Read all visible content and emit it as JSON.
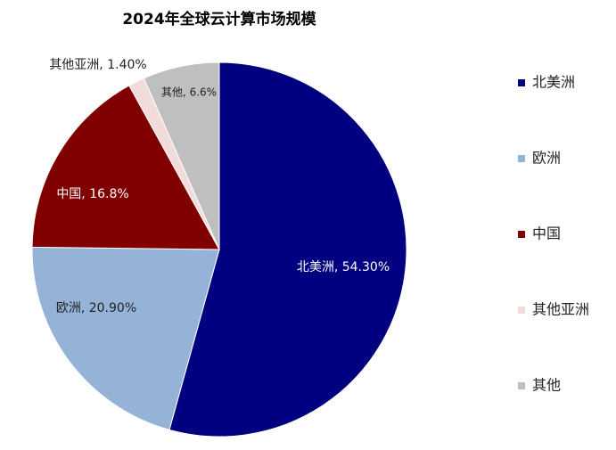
{
  "chart_data": {
    "type": "pie",
    "title": "2024年全球云计算市场规模",
    "categories": [
      "北美洲",
      "欧洲",
      "中国",
      "其他亚洲",
      "其他"
    ],
    "values": [
      54.3,
      20.9,
      16.8,
      1.4,
      6.6
    ],
    "value_labels": [
      "北美洲, 54.30%",
      "欧洲, 20.90%",
      "中国, 16.8%",
      "其他亚洲, 1.40%",
      "其他, 6.6%"
    ],
    "colors": [
      "#000080",
      "#95b3d7",
      "#800000",
      "#f2dcdb",
      "#bfbfbf"
    ],
    "legend": "right"
  }
}
